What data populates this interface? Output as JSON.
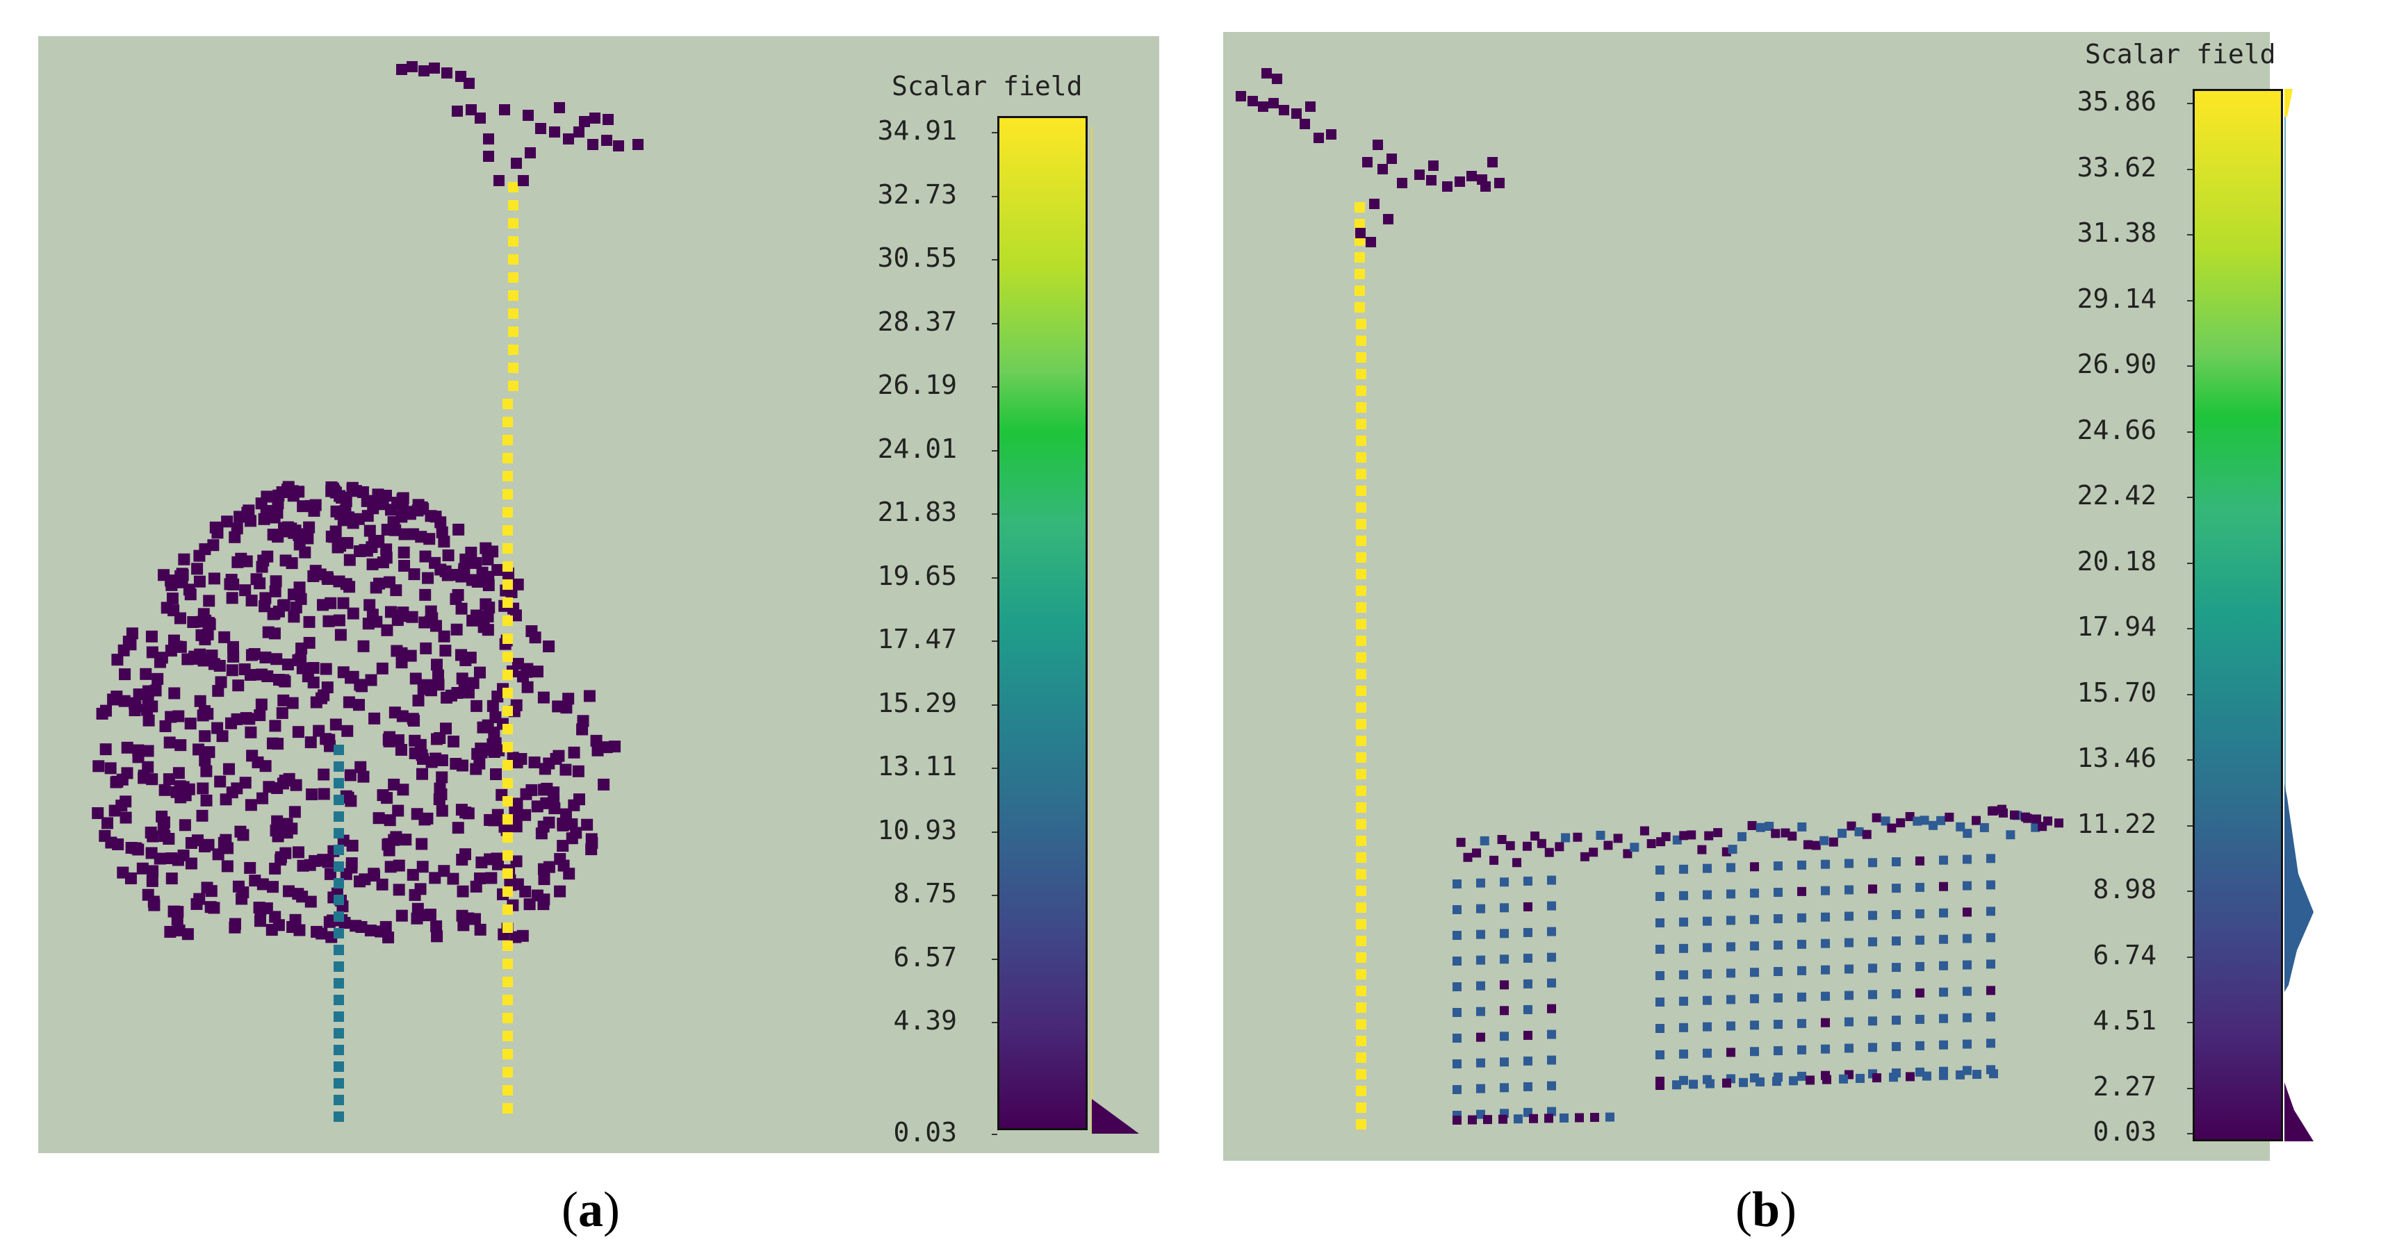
{
  "panel_a": {
    "caption_open": "(",
    "caption_letter": "a",
    "caption_close": ")",
    "scalar_field": {
      "title": "Scalar field",
      "ticks": [
        "34.91",
        "32.73",
        "30.55",
        "28.37",
        "26.19",
        "24.01",
        "21.83",
        "19.65",
        "17.47",
        "15.29",
        "13.11",
        "10.93",
        "8.75",
        "6.57",
        "4.39",
        "0.03"
      ]
    }
  },
  "panel_b": {
    "caption_open": "(",
    "caption_letter": "b",
    "caption_close": ")",
    "scalar_field": {
      "title": "Scalar field",
      "ticks": [
        "35.86",
        "33.62",
        "31.38",
        "29.14",
        "26.90",
        "24.66",
        "22.42",
        "20.18",
        "17.94",
        "15.70",
        "13.46",
        "11.22",
        "8.98",
        "6.74",
        "4.51",
        "2.27",
        "0.03"
      ]
    }
  },
  "colors": {
    "background": "#bcc9b4",
    "low": "#440154",
    "mid": "#21768f",
    "high": "#fde725"
  }
}
